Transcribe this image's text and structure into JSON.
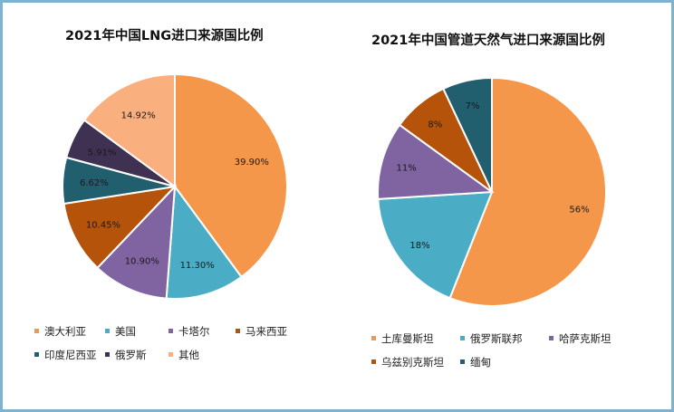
{
  "chart_data": [
    {
      "type": "pie",
      "title": "2021年中国LNG进口来源国比例",
      "categories": [
        "澳大利亚",
        "美国",
        "卡塔尔",
        "马来西亚",
        "印度尼西亚",
        "俄罗斯",
        "其他"
      ],
      "values": [
        39.9,
        11.3,
        10.9,
        10.45,
        6.62,
        5.91,
        14.92
      ],
      "labels": [
        "39.90%",
        "11.30%",
        "10.90%",
        "10.45%",
        "6.62%",
        "5.91%",
        "14.92%"
      ],
      "colors": [
        "#f4974a",
        "#4bacc6",
        "#8064a2",
        "#b45309",
        "#215f6e",
        "#3f3151",
        "#f9b07e"
      ],
      "legend_position": "bottom"
    },
    {
      "type": "pie",
      "title": "2021年中国管道天然气进口来源国比例",
      "categories": [
        "土库曼斯坦",
        "俄罗斯联邦",
        "哈萨克斯坦",
        "乌兹别克斯坦",
        "缅甸"
      ],
      "values": [
        56,
        18,
        11,
        8,
        7
      ],
      "labels": [
        "56%",
        "18%",
        "11%",
        "8%",
        "7%"
      ],
      "colors": [
        "#f4974a",
        "#4bacc6",
        "#8064a2",
        "#b45309",
        "#215f6e"
      ],
      "legend_position": "bottom"
    }
  ]
}
